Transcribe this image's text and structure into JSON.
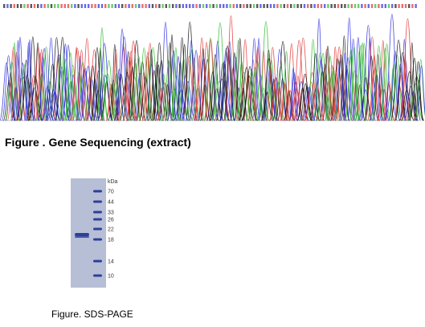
{
  "figures": [
    {
      "caption": "Figure . Gene Sequencing (extract)"
    },
    {
      "caption": "Figure. SDS-PAGE",
      "gel": {
        "unit": "kDa",
        "markers": [
          "70",
          "44",
          "33",
          "26",
          "22",
          "18",
          "14",
          "10"
        ]
      }
    }
  ]
}
